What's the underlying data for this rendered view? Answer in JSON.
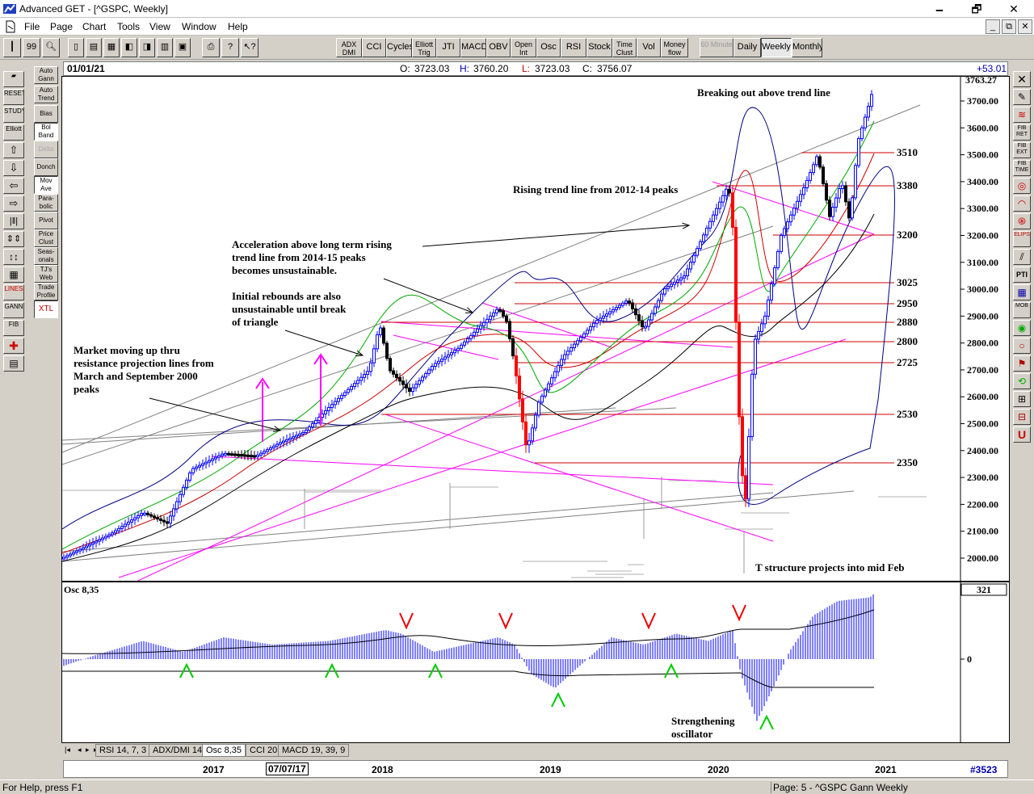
{
  "window": {
    "title": "Advanced GET - [^GSPC, Weekly]",
    "minimize": "🗕",
    "restore": "🗗",
    "close": "✕"
  },
  "menu": [
    "File",
    "Page",
    "Chart",
    "Tools",
    "View",
    "Window",
    "Help"
  ],
  "mdi_buttons": [
    "_",
    "⧉",
    "✕"
  ],
  "toolbar": {
    "indicators": [
      "ADX DMI",
      "CCI",
      "Cycles",
      "Elliott Trig",
      "JTI",
      "MACD",
      "OBV",
      "Open Int",
      "Osc",
      "RSI",
      "Stock",
      "Time Clust",
      "Vol",
      "Money flow"
    ],
    "periods": [
      "60 Minute",
      "Daily",
      "Weekly",
      "Monthly"
    ],
    "selected_period": "Weekly"
  },
  "left_tools_a": [
    "",
    "RESET",
    "STUDY",
    "Elliott",
    "",
    "",
    "",
    "",
    "",
    "",
    "",
    "LINES",
    "GANN",
    "FIB",
    "",
    ""
  ],
  "left_tools_b": [
    "Auto Gann",
    "Auto Trend",
    "Bias",
    "Bol Band",
    "Delta",
    "Donch",
    "Mov Ave",
    "Para-bolic",
    "Pivot",
    "Price Clust",
    "Seas-onals",
    "TJ's Web",
    "Trade Profile",
    "XTL"
  ],
  "right_tools": [
    "",
    "",
    "",
    "FIB RET",
    "FIB EXT",
    "FIB TIME",
    "",
    "",
    "",
    "ELIPS",
    "",
    "PTI",
    "",
    "MOB",
    "",
    "",
    "",
    "",
    "",
    "",
    "U"
  ],
  "info": {
    "date": "01/01/21",
    "open_label": "O:",
    "open": "3723.03",
    "high_label": "H:",
    "high": "3760.20",
    "low_label": "L:",
    "low": "3723.03",
    "close_label": "C:",
    "close": "3756.07",
    "change": "+53.01"
  },
  "chart": {
    "ticks": [
      "3700.00",
      "3600.00",
      "3500.00",
      "3400.00",
      "3300.00",
      "3200.00",
      "3100.00",
      "3000.00",
      "2900.00",
      "2800.00",
      "2700.00",
      "2600.00",
      "2500.00",
      "2400.00",
      "2300.00",
      "2200.00",
      "2100.00",
      "2000.00"
    ],
    "top_partial": "3763.27",
    "levels": [
      "3510",
      "3380",
      "3200",
      "3025",
      "2950",
      "2880",
      "2800",
      "2725",
      "2530",
      "2350"
    ],
    "annotations": {
      "breakout": "Breaking out above trend line",
      "rising": "Rising trend line from 2012-14 peaks",
      "accel1": "Acceleration above long term rising",
      "accel2": "trend line from 2014-15 peaks",
      "accel3": "becomes unsustainable.",
      "init1": "Initial rebounds are also",
      "init2": "unsustainable until break",
      "init3": "of triangle",
      "mkt1": "Market moving up thru",
      "mkt2": "resistance projection lines from",
      "mkt3": "March and September 2000",
      "mkt4": "peaks",
      "tstruct": "T structure projects into mid Feb"
    }
  },
  "osc": {
    "label": "Osc 8,35",
    "value": "321",
    "zero": "0",
    "note1": "Strengthening",
    "note2": "oscillator"
  },
  "tabs": [
    "RSI 14, 7, 3",
    "ADX/DMI 14",
    "Osc 8,35",
    "CCI 20",
    "MACD 19, 39, 9"
  ],
  "selected_tab": "Osc 8,35",
  "dates": {
    "y2017": "2017",
    "cursor": "07/07/17",
    "y2018": "2018",
    "y2019": "2019",
    "y2020": "2020",
    "y2021": "2021",
    "bars": "#3523"
  },
  "status": {
    "help": "For Help, press F1",
    "page": "Page: 5 - ^GSPC Gann Weekly"
  },
  "colors": {
    "up_bar": "#0000ff",
    "down_bar": "#000000",
    "big_down": "#ff0000",
    "level_line": "#cc0000",
    "trend_magenta": "#ff00ff",
    "ma_green": "#00aa00",
    "ma_red": "#cc0000",
    "band": "#000080"
  }
}
